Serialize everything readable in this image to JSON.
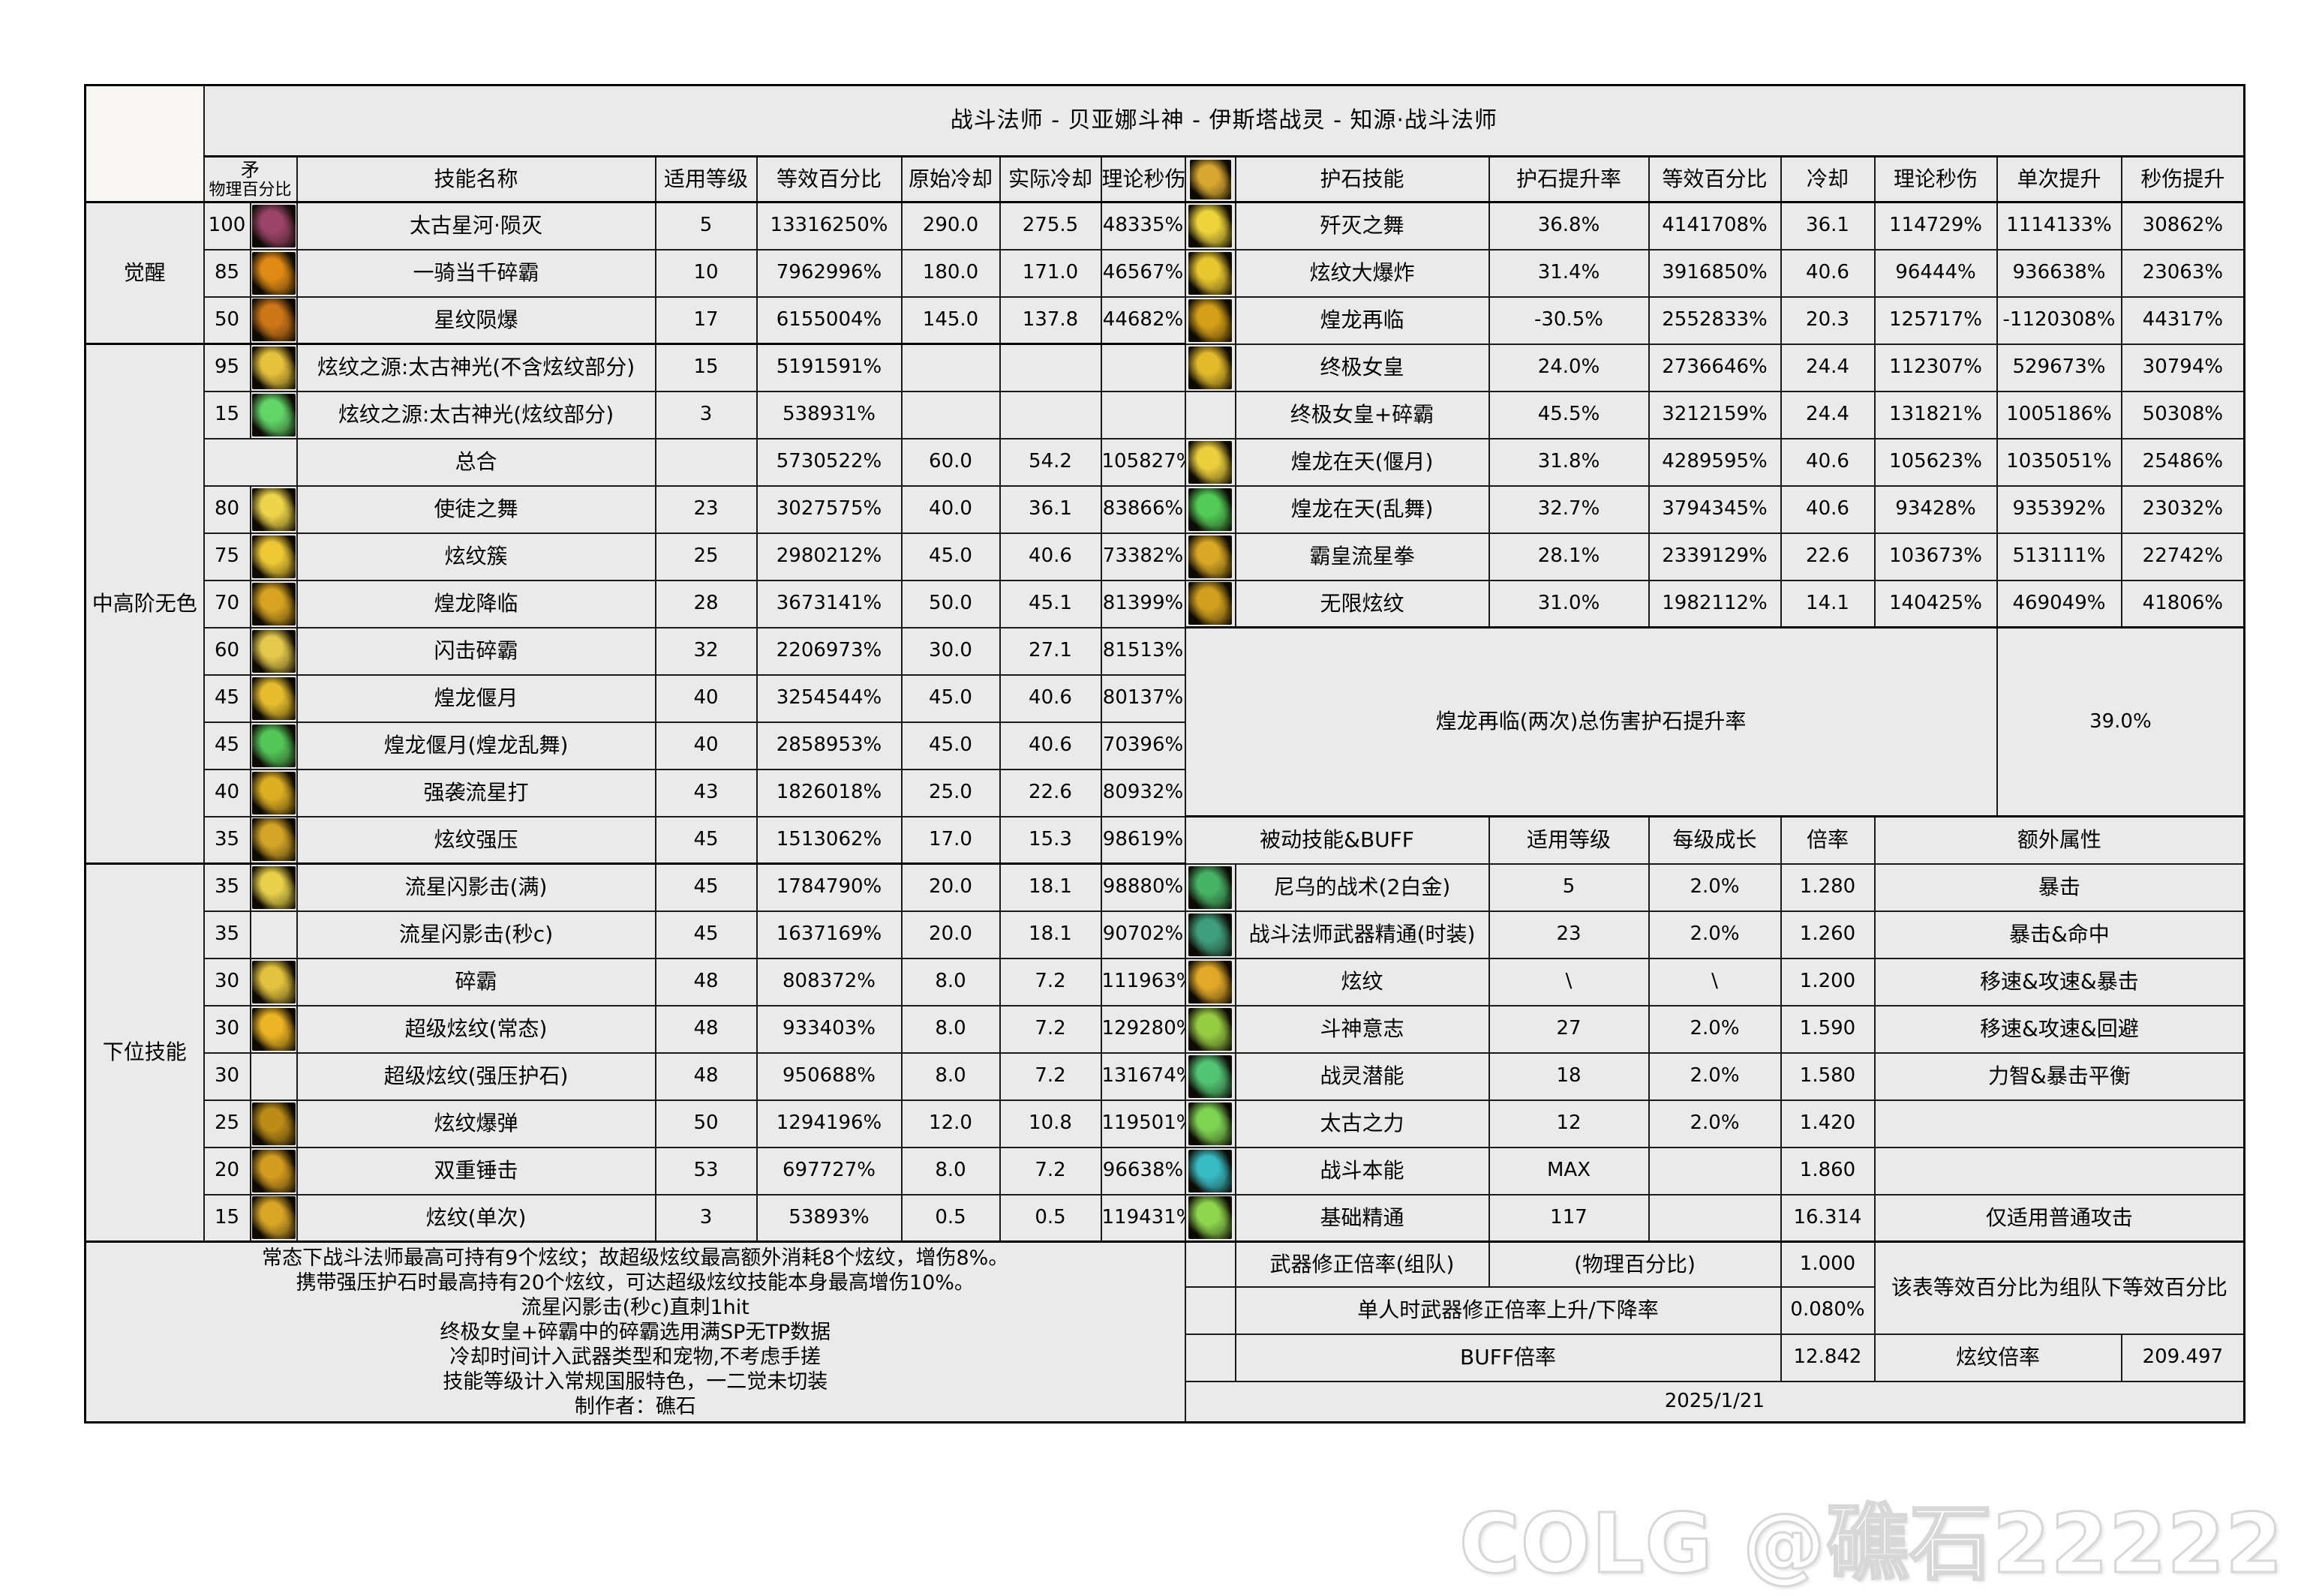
{
  "title": "战斗法师 - 贝亚娜斗神 - 伊斯塔战灵 - 知源·战斗法师",
  "watermark_text": "COLG @礁石22222",
  "date": "2025/1/21",
  "colors": {
    "cell_bg": "#eaeaea",
    "border": "#1b1b1b",
    "thick_border": "#000000",
    "watermark": "#d7d7d7",
    "icon_gold": "#e2b42a",
    "icon_green": "#54c658"
  },
  "left_table": {
    "header": {
      "spear_line1": "矛",
      "spear_line2": "物理百分比",
      "name": "技能名称",
      "level": "适用等级",
      "equiv": "等效百分比",
      "cd_base": "原始冷却",
      "cd_real": "实际冷却",
      "dps": "理论秒伤"
    },
    "groups": [
      {
        "label": "觉醒",
        "rows": [
          {
            "pct": "100",
            "icon": "taigu-xinghe-yunmie-icon",
            "ic": "#9c4468",
            "name": "太古星河·陨灭",
            "level": "5",
            "equiv": "13316250%",
            "cd_base": "290.0",
            "cd_real": "275.5",
            "dps": "48335%"
          },
          {
            "pct": "85",
            "icon": "yiqidangqian-suiba-icon",
            "ic": "#e08a14",
            "name": "一骑当千碎霸",
            "level": "10",
            "equiv": "7962996%",
            "cd_base": "180.0",
            "cd_real": "171.0",
            "dps": "46567%"
          },
          {
            "pct": "50",
            "icon": "xingwen-yunbao-icon",
            "ic": "#cc7618",
            "name": "星纹陨爆",
            "level": "17",
            "equiv": "6155004%",
            "cd_base": "145.0",
            "cd_real": "137.8",
            "dps": "44682%"
          }
        ]
      },
      {
        "label": "中高阶无色",
        "rows": [
          {
            "pct": "95",
            "icon": "xuanwen-zhiyuan-gold-icon",
            "ic": "#e6c23c",
            "name": "炫纹之源:太古神光(不含炫纹部分)",
            "level": "15",
            "equiv": "5191591%",
            "cd_base": "",
            "cd_real": "",
            "dps": ""
          },
          {
            "pct": "15",
            "icon": "xuanwen-zhiyuan-green-icon",
            "ic": "#62d468",
            "name": "炫纹之源:太古神光(炫纹部分)",
            "level": "3",
            "equiv": "538931%",
            "cd_base": "",
            "cd_real": "",
            "dps": ""
          },
          {
            "pct": "",
            "icon": "",
            "ic": "",
            "name": "总合",
            "level": "",
            "equiv": "5730522%",
            "cd_base": "60.0",
            "cd_real": "54.2",
            "dps": "105827%"
          },
          {
            "pct": "80",
            "icon": "shitu-zhiwu-icon",
            "ic": "#eed448",
            "name": "使徒之舞",
            "level": "23",
            "equiv": "3027575%",
            "cd_base": "40.0",
            "cd_real": "36.1",
            "dps": "83866%"
          },
          {
            "pct": "75",
            "icon": "xuanwen-cu-icon",
            "ic": "#eec834",
            "name": "炫纹簇",
            "level": "25",
            "equiv": "2980212%",
            "cd_base": "45.0",
            "cd_real": "40.6",
            "dps": "73382%"
          },
          {
            "pct": "70",
            "icon": "huanglong-jianglin-icon",
            "ic": "#d8a320",
            "name": "煌龙降临",
            "level": "28",
            "equiv": "3673141%",
            "cd_base": "50.0",
            "cd_real": "45.1",
            "dps": "81399%"
          },
          {
            "pct": "60",
            "icon": "shanji-suiba-icon",
            "ic": "#e4c84a",
            "name": "闪击碎霸",
            "level": "32",
            "equiv": "2206973%",
            "cd_base": "30.0",
            "cd_real": "27.1",
            "dps": "81513%"
          },
          {
            "pct": "45",
            "icon": "huanglong-yanyue-icon",
            "ic": "#e6bc2e",
            "name": "煌龙偃月",
            "level": "40",
            "equiv": "3254544%",
            "cd_base": "45.0",
            "cd_real": "40.6",
            "dps": "80137%"
          },
          {
            "pct": "45",
            "icon": "huanglong-luanwu-icon",
            "ic": "#54c658",
            "name": "煌龙偃月(煌龙乱舞)",
            "level": "40",
            "equiv": "2858953%",
            "cd_base": "45.0",
            "cd_real": "40.6",
            "dps": "70396%"
          },
          {
            "pct": "40",
            "icon": "qiangxi-liuxingda-icon",
            "ic": "#dcae22",
            "name": "强袭流星打",
            "level": "43",
            "equiv": "1826018%",
            "cd_base": "25.0",
            "cd_real": "22.6",
            "dps": "80932%"
          },
          {
            "pct": "35",
            "icon": "xuanwen-qiangya-icon",
            "ic": "#d4a426",
            "name": "炫纹强压",
            "level": "45",
            "equiv": "1513062%",
            "cd_base": "17.0",
            "cd_real": "15.3",
            "dps": "98619%"
          }
        ]
      },
      {
        "label": "下位技能",
        "rows": [
          {
            "pct": "35",
            "icon": "liuxing-shanyingji-man-icon",
            "ic": "#e8d048",
            "name": "流星闪影击(满)",
            "level": "45",
            "equiv": "1784790%",
            "cd_base": "20.0",
            "cd_real": "18.1",
            "dps": "98880%"
          },
          {
            "pct": "35",
            "icon": "",
            "ic": "",
            "name": "流星闪影击(秒c)",
            "level": "45",
            "equiv": "1637169%",
            "cd_base": "20.0",
            "cd_real": "18.1",
            "dps": "90702%"
          },
          {
            "pct": "30",
            "icon": "suiba-icon",
            "ic": "#e2c23e",
            "name": "碎霸",
            "level": "48",
            "equiv": "808372%",
            "cd_base": "8.0",
            "cd_real": "7.2",
            "dps": "111963%"
          },
          {
            "pct": "30",
            "icon": "chaoji-xuanwen-icon",
            "ic": "#ecb424",
            "name": "超级炫纹(常态)",
            "level": "48",
            "equiv": "933403%",
            "cd_base": "8.0",
            "cd_real": "7.2",
            "dps": "129280%"
          },
          {
            "pct": "30",
            "icon": "",
            "ic": "",
            "name": "超级炫纹(强压护石)",
            "level": "48",
            "equiv": "950688%",
            "cd_base": "8.0",
            "cd_real": "7.2",
            "dps": "131674%"
          },
          {
            "pct": "25",
            "icon": "xuanwen-baodan-icon",
            "ic": "#bc8c16",
            "name": "炫纹爆弹",
            "level": "50",
            "equiv": "1294196%",
            "cd_base": "12.0",
            "cd_real": "10.8",
            "dps": "119501%"
          },
          {
            "pct": "20",
            "icon": "shuangchong-chuiji-icon",
            "ic": "#d49c1e",
            "name": "双重锤击",
            "level": "53",
            "equiv": "697727%",
            "cd_base": "8.0",
            "cd_real": "7.2",
            "dps": "96638%"
          },
          {
            "pct": "15",
            "icon": "xuanwen-danci-icon",
            "ic": "#daa626",
            "name": "炫纹(单次)",
            "level": "3",
            "equiv": "53893%",
            "cd_base": "0.5",
            "cd_real": "0.5",
            "dps": "119431%"
          }
        ]
      }
    ],
    "notes": [
      "常态下战斗法师最高可持有9个炫纹；故超级炫纹最高额外消耗8个炫纹，增伤8%。",
      "携带强压护石时最高持有20个炫纹，可达超级炫纹技能本身最高增伤10%。",
      "流星闪影击(秒c)直刺1hit",
      "终极女皇+碎霸中的碎霸选用满SP无TP数据",
      "冷却时间计入武器类型和宠物,不考虑手搓",
      "技能等级计入常规国服特色，一二觉未切装",
      "制作者：礁石"
    ]
  },
  "stone_table": {
    "header": {
      "skill": "护石技能",
      "rate": "护石提升率",
      "equiv": "等效百分比",
      "cd": "冷却",
      "dps": "理论秒伤",
      "single": "单次提升",
      "dps_up": "秒伤提升"
    },
    "header_icon": {
      "icon": "hexagram-stone-icon",
      "ic": "#d8a730"
    },
    "rows": [
      {
        "icon": "jianmie-zhiwu-icon",
        "ic": "#eed43a",
        "name": "歼灭之舞",
        "rate": "36.8%",
        "equiv": "4141708%",
        "cd": "36.1",
        "dps": "114729%",
        "single": "1114133%",
        "dps_up": "30862%"
      },
      {
        "icon": "xuanwen-dabaozha-icon",
        "ic": "#e8c62e",
        "name": "炫纹大爆炸",
        "rate": "31.4%",
        "equiv": "3916850%",
        "cd": "40.6",
        "dps": "96444%",
        "single": "936638%",
        "dps_up": "23063%"
      },
      {
        "icon": "huanglong-zailin-icon",
        "ic": "#d49e16",
        "name": "煌龙再临",
        "rate": "-30.5%",
        "equiv": "2552833%",
        "cd": "20.3",
        "dps": "125717%",
        "single": "-1120308%",
        "dps_up": "44317%"
      },
      {
        "icon": "zhongji-nvhuang-icon",
        "ic": "#e2ba2a",
        "name": "终极女皇",
        "rate": "24.0%",
        "equiv": "2736646%",
        "cd": "24.4",
        "dps": "112307%",
        "single": "529673%",
        "dps_up": "30794%"
      },
      {
        "icon": "",
        "ic": "",
        "name": "终极女皇+碎霸",
        "rate": "45.5%",
        "equiv": "3212159%",
        "cd": "24.4",
        "dps": "131821%",
        "single": "1005186%",
        "dps_up": "50308%"
      },
      {
        "icon": "huanglong-zaitian-yanyue-icon",
        "ic": "#ecce3c",
        "name": "煌龙在天(偃月)",
        "rate": "31.8%",
        "equiv": "4289595%",
        "cd": "40.6",
        "dps": "105623%",
        "single": "1035051%",
        "dps_up": "25486%"
      },
      {
        "icon": "huanglong-zaitian-luanwu-icon",
        "ic": "#52cc56",
        "name": "煌龙在天(乱舞)",
        "rate": "32.7%",
        "equiv": "3794345%",
        "cd": "40.6",
        "dps": "93428%",
        "single": "935392%",
        "dps_up": "23032%"
      },
      {
        "icon": "bahuang-liuxingquan-icon",
        "ic": "#daa824",
        "name": "霸皇流星拳",
        "rate": "28.1%",
        "equiv": "2339129%",
        "cd": "22.6",
        "dps": "103673%",
        "single": "513111%",
        "dps_up": "22742%"
      },
      {
        "icon": "wuxian-xuanwen-icon",
        "ic": "#d2a01e",
        "name": "无限炫纹",
        "rate": "31.0%",
        "equiv": "1982112%",
        "cd": "14.1",
        "dps": "140425%",
        "single": "469049%",
        "dps_up": "41806%"
      }
    ],
    "summary": {
      "label": "煌龙再临(两次)总伤害护石提升率",
      "value": "39.0%"
    }
  },
  "passive_table": {
    "header": {
      "name": "被动技能&BUFF",
      "level": "适用等级",
      "growth": "每级成长",
      "mult": "倍率",
      "extra": "额外属性"
    },
    "rows": [
      {
        "icon": "niwu-zhanshu-icon",
        "ic": "#46b264",
        "name": "尼乌的战术(2白金)",
        "level": "5",
        "growth": "2.0%",
        "mult": "1.280",
        "extra": "暴击"
      },
      {
        "icon": "wuqi-jingtong-icon",
        "ic": "#3f9e7e",
        "name": "战斗法师武器精通(时装)",
        "level": "23",
        "growth": "2.0%",
        "mult": "1.260",
        "extra": "暴击&命中"
      },
      {
        "icon": "xuanwen-passive-icon",
        "ic": "#e2a828",
        "name": "炫纹",
        "level": "\\",
        "growth": "\\",
        "mult": "1.200",
        "extra": "移速&攻速&暴击"
      },
      {
        "icon": "doushen-yizhi-icon",
        "ic": "#96cc42",
        "name": "斗神意志",
        "level": "27",
        "growth": "2.0%",
        "mult": "1.590",
        "extra": "移速&攻速&回避"
      },
      {
        "icon": "zhanling-qianneng-icon",
        "ic": "#52c474",
        "name": "战灵潜能",
        "level": "18",
        "growth": "2.0%",
        "mult": "1.580",
        "extra": "力智&暴击平衡"
      },
      {
        "icon": "taigu-zhili-icon",
        "ic": "#7ed452",
        "name": "太古之力",
        "level": "12",
        "growth": "2.0%",
        "mult": "1.420",
        "extra": ""
      },
      {
        "icon": "zhandou-benneng-icon",
        "ic": "#38bcc4",
        "name": "战斗本能",
        "level": "MAX",
        "growth": "",
        "mult": "1.860",
        "extra": ""
      },
      {
        "icon": "jichu-jingtong-icon",
        "ic": "#8ed64e",
        "name": "基础精通",
        "level": "117",
        "growth": "",
        "mult": "16.314",
        "extra": "仅适用普通攻击"
      }
    ]
  },
  "bottom_right": {
    "weapon_fix_label": "武器修正倍率(组队)",
    "weapon_fix_type": "(物理百分比)",
    "weapon_fix_value": "1.000",
    "team_note": "该表等效百分比为组队下等效百分比",
    "solo_label": "单人时武器修正倍率上升/下降率",
    "solo_value": "0.080%",
    "buff_label": "BUFF倍率",
    "buff_value": "12.842",
    "xuanwen_label": "炫纹倍率",
    "xuanwen_value": "209.497"
  }
}
